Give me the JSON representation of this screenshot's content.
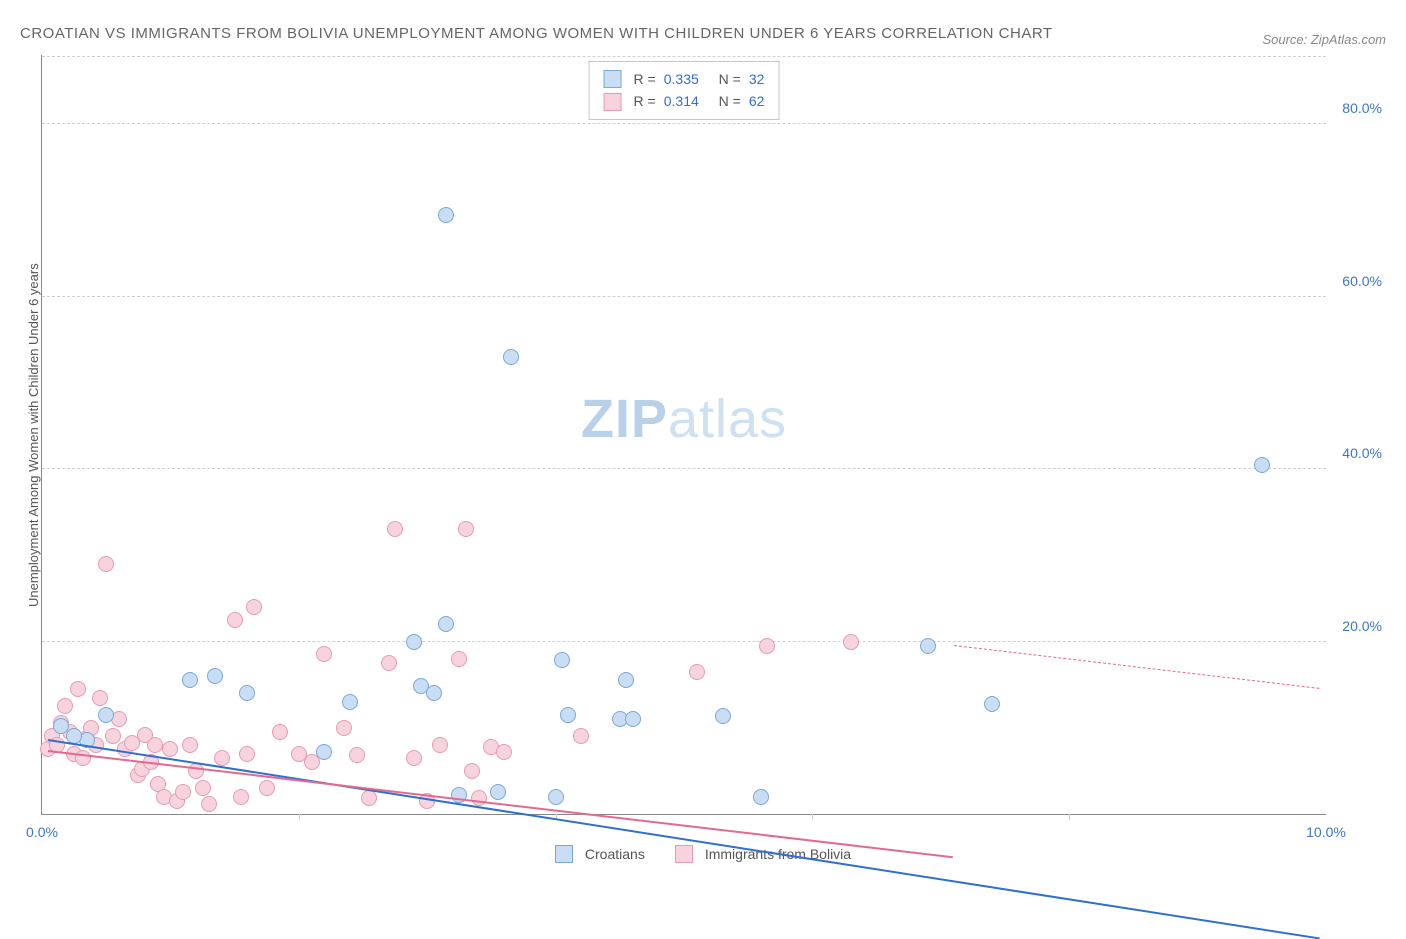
{
  "title": "CROATIAN VS IMMIGRANTS FROM BOLIVIA UNEMPLOYMENT AMONG WOMEN WITH CHILDREN UNDER 6 YEARS CORRELATION CHART",
  "source": "Source: ZipAtlas.com",
  "ylabel": "Unemployment Among Women with Children Under 6 years",
  "watermark_bold": "ZIP",
  "watermark_light": "atlas",
  "chart": {
    "type": "scatter",
    "x_min": 0,
    "x_max": 10,
    "y_min": 0,
    "y_max": 88,
    "x_ticks": [
      0,
      2,
      4,
      6,
      8,
      10
    ],
    "x_tick_labels": [
      "0.0%",
      "",
      "",
      "",
      "",
      "10.0%"
    ],
    "y_ticks": [
      20,
      40,
      60,
      80
    ],
    "y_tick_labels": [
      "20.0%",
      "40.0%",
      "60.0%",
      "80.0%"
    ],
    "grid_color": "#d8d8d8",
    "axis_color": "#888888",
    "label_color": "#3b78c4",
    "background": "#ffffff",
    "marker_radius": 8,
    "series": [
      {
        "name": "Croatians",
        "fill": "#c9ddf4",
        "stroke": "#7aa8d8",
        "line_color": "#2f6fd0",
        "R": "0.335",
        "N": "32",
        "trend": {
          "x1": 0.05,
          "y1": 8.5,
          "x2": 9.95,
          "y2": 31.5,
          "dash_from_x": null
        },
        "points": [
          [
            0.35,
            8.6
          ],
          [
            0.15,
            10.2
          ],
          [
            0.25,
            9.0
          ],
          [
            0.5,
            11.5
          ],
          [
            1.15,
            15.5
          ],
          [
            1.35,
            16.0
          ],
          [
            1.6,
            14.0
          ],
          [
            2.2,
            7.2
          ],
          [
            2.4,
            13.0
          ],
          [
            2.9,
            20.0
          ],
          [
            2.95,
            14.8
          ],
          [
            3.15,
            22.0
          ],
          [
            3.05,
            14.0
          ],
          [
            3.25,
            2.2
          ],
          [
            3.15,
            69.5
          ],
          [
            3.55,
            2.5
          ],
          [
            3.65,
            53.0
          ],
          [
            4.0,
            2.0
          ],
          [
            4.1,
            11.5
          ],
          [
            4.05,
            17.8
          ],
          [
            4.5,
            11.0
          ],
          [
            4.55,
            15.5
          ],
          [
            4.6,
            11.0
          ],
          [
            5.3,
            11.4
          ],
          [
            5.6,
            2.0
          ],
          [
            6.9,
            19.5
          ],
          [
            7.4,
            12.8
          ],
          [
            9.5,
            40.5
          ]
        ]
      },
      {
        "name": "Immigrants from Bolivia",
        "fill": "#f7d3de",
        "stroke": "#e89ab3",
        "line_color": "#e36a8f",
        "R": "0.314",
        "N": "62",
        "trend": {
          "x1": 0.05,
          "y1": 7.2,
          "x2": 9.95,
          "y2": 24.5,
          "dash_from_x": 7.1
        },
        "points": [
          [
            0.05,
            7.5
          ],
          [
            0.08,
            9.0
          ],
          [
            0.12,
            8.0
          ],
          [
            0.15,
            10.5
          ],
          [
            0.18,
            12.5
          ],
          [
            0.22,
            9.5
          ],
          [
            0.25,
            7.0
          ],
          [
            0.28,
            14.5
          ],
          [
            0.32,
            6.5
          ],
          [
            0.35,
            8.8
          ],
          [
            0.38,
            10.0
          ],
          [
            0.42,
            8.0
          ],
          [
            0.45,
            13.5
          ],
          [
            0.5,
            29.0
          ],
          [
            0.55,
            9.0
          ],
          [
            0.6,
            11.0
          ],
          [
            0.65,
            7.5
          ],
          [
            0.7,
            8.2
          ],
          [
            0.75,
            4.5
          ],
          [
            0.78,
            5.2
          ],
          [
            0.8,
            9.2
          ],
          [
            0.85,
            6.0
          ],
          [
            0.88,
            8.0
          ],
          [
            0.9,
            3.5
          ],
          [
            0.95,
            2.0
          ],
          [
            1.0,
            7.5
          ],
          [
            1.05,
            1.5
          ],
          [
            1.1,
            2.5
          ],
          [
            1.15,
            8.0
          ],
          [
            1.2,
            5.0
          ],
          [
            1.25,
            3.0
          ],
          [
            1.3,
            1.2
          ],
          [
            1.4,
            6.5
          ],
          [
            1.5,
            22.5
          ],
          [
            1.55,
            2.0
          ],
          [
            1.6,
            7.0
          ],
          [
            1.65,
            24.0
          ],
          [
            1.75,
            3.0
          ],
          [
            1.85,
            9.5
          ],
          [
            2.0,
            7.0
          ],
          [
            2.1,
            6.0
          ],
          [
            2.2,
            18.5
          ],
          [
            2.35,
            10.0
          ],
          [
            2.45,
            6.8
          ],
          [
            2.55,
            1.8
          ],
          [
            2.7,
            17.5
          ],
          [
            2.75,
            33.0
          ],
          [
            2.9,
            6.5
          ],
          [
            3.0,
            1.5
          ],
          [
            3.1,
            8.0
          ],
          [
            3.25,
            18.0
          ],
          [
            3.3,
            33.0
          ],
          [
            3.35,
            5.0
          ],
          [
            3.4,
            1.8
          ],
          [
            3.5,
            7.8
          ],
          [
            3.6,
            7.2
          ],
          [
            4.2,
            9.0
          ],
          [
            5.1,
            16.5
          ],
          [
            5.65,
            19.5
          ],
          [
            6.3,
            20.0
          ]
        ]
      }
    ]
  },
  "legend_labels": {
    "series_a": "Croatians",
    "series_b": "Immigrants from Bolivia"
  },
  "stat_labels": {
    "R": "R =",
    "N": "N ="
  }
}
